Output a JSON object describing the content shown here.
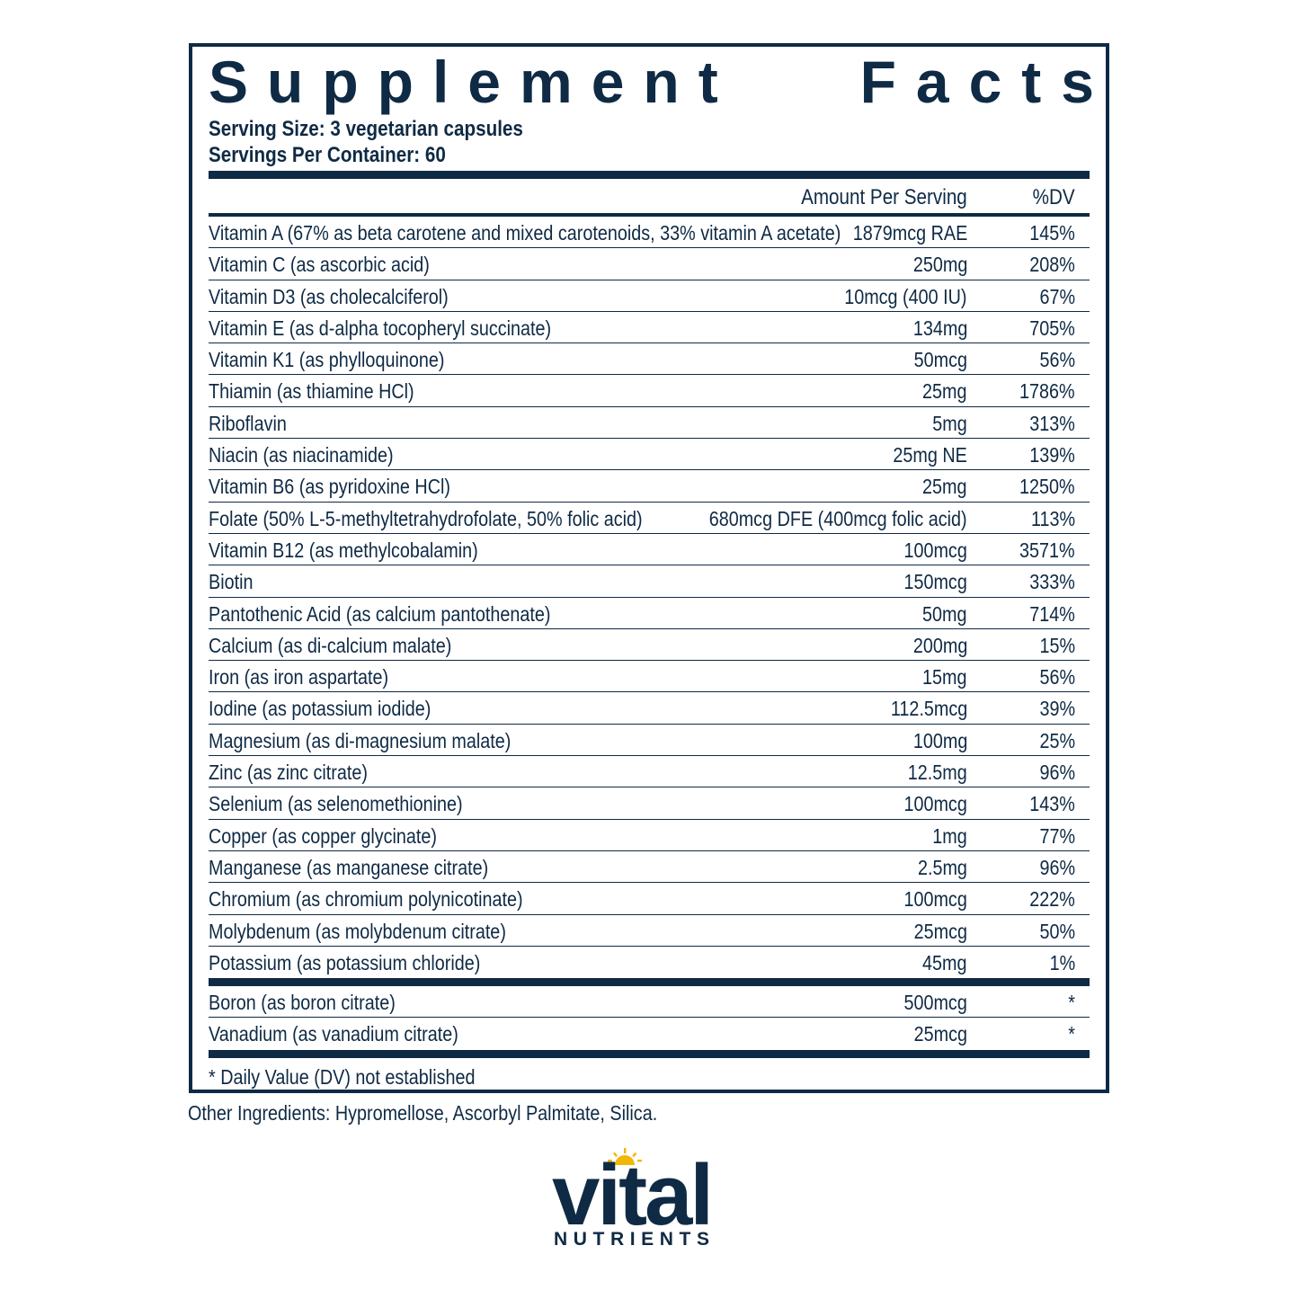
{
  "label": {
    "title_word1": "Supplement",
    "title_word2": "Facts",
    "serving_size": "Serving Size: 3 vegetarian capsules",
    "servings_per_container": "Servings Per Container: 60",
    "header": {
      "amount": "Amount Per Serving",
      "dv": "%DV"
    },
    "nutrients": [
      {
        "name": "Vitamin A (67% as beta carotene and mixed carotenoids, 33% vitamin A acetate)",
        "amount": "1879mcg RAE",
        "dv": "145%"
      },
      {
        "name": "Vitamin C (as ascorbic acid)",
        "amount": "250mg",
        "dv": "208%"
      },
      {
        "name": "Vitamin D3 (as cholecalciferol)",
        "amount": "10mcg (400 IU)",
        "dv": "67%"
      },
      {
        "name": "Vitamin E (as d-alpha tocopheryl succinate)",
        "amount": "134mg",
        "dv": "705%"
      },
      {
        "name": "Vitamin K1 (as phylloquinone)",
        "amount": "50mcg",
        "dv": "56%"
      },
      {
        "name": "Thiamin (as thiamine HCl)",
        "amount": "25mg",
        "dv": "1786%"
      },
      {
        "name": "Riboflavin",
        "amount": "5mg",
        "dv": "313%"
      },
      {
        "name": "Niacin (as niacinamide)",
        "amount": "25mg NE",
        "dv": "139%"
      },
      {
        "name": "Vitamin B6 (as pyridoxine HCl)",
        "amount": "25mg",
        "dv": "1250%"
      },
      {
        "name": "Folate (50% L-5-methyltetrahydrofolate, 50% folic acid)",
        "amount": "680mcg DFE (400mcg folic acid)",
        "dv": "113%"
      },
      {
        "name": "Vitamin B12 (as methylcobalamin)",
        "amount": "100mcg",
        "dv": "3571%"
      },
      {
        "name": "Biotin",
        "amount": "150mcg",
        "dv": "333%"
      },
      {
        "name": "Pantothenic Acid (as calcium pantothenate)",
        "amount": "50mg",
        "dv": "714%"
      },
      {
        "name": "Calcium (as di-calcium malate)",
        "amount": "200mg",
        "dv": "15%"
      },
      {
        "name": "Iron (as iron aspartate)",
        "amount": "15mg",
        "dv": "56%"
      },
      {
        "name": "Iodine (as potassium iodide)",
        "amount": "112.5mcg",
        "dv": "39%"
      },
      {
        "name": "Magnesium (as di-magnesium malate)",
        "amount": "100mg",
        "dv": "25%"
      },
      {
        "name": "Zinc (as zinc citrate)",
        "amount": "12.5mg",
        "dv": "96%"
      },
      {
        "name": "Selenium (as selenomethionine)",
        "amount": "100mcg",
        "dv": "143%"
      },
      {
        "name": "Copper (as copper glycinate)",
        "amount": "1mg",
        "dv": "77%"
      },
      {
        "name": "Manganese (as manganese citrate)",
        "amount": "2.5mg",
        "dv": "96%"
      },
      {
        "name": "Chromium (as chromium polynicotinate)",
        "amount": "100mcg",
        "dv": "222%"
      },
      {
        "name": "Molybdenum (as molybdenum citrate)",
        "amount": "25mcg",
        "dv": "50%"
      },
      {
        "name": "Potassium (as potassium chloride)",
        "amount": "45mg",
        "dv": "1%"
      }
    ],
    "other_nutrients": [
      {
        "name": "Boron (as boron citrate)",
        "amount": "500mcg",
        "dv": "*"
      },
      {
        "name": "Vanadium (as vanadium citrate)",
        "amount": "25mcg",
        "dv": "*"
      }
    ],
    "footnote": "* Daily Value (DV) not established"
  },
  "other_ingredients": "Other Ingredients: Hypromellose, Ascorbyl Palmitate, Silica.",
  "brand": {
    "name": "vital",
    "tagline": "NUTRIENTS",
    "icon": "sun-icon",
    "colors": {
      "primary": "#0f2a44",
      "accent": "#f2b705"
    }
  }
}
